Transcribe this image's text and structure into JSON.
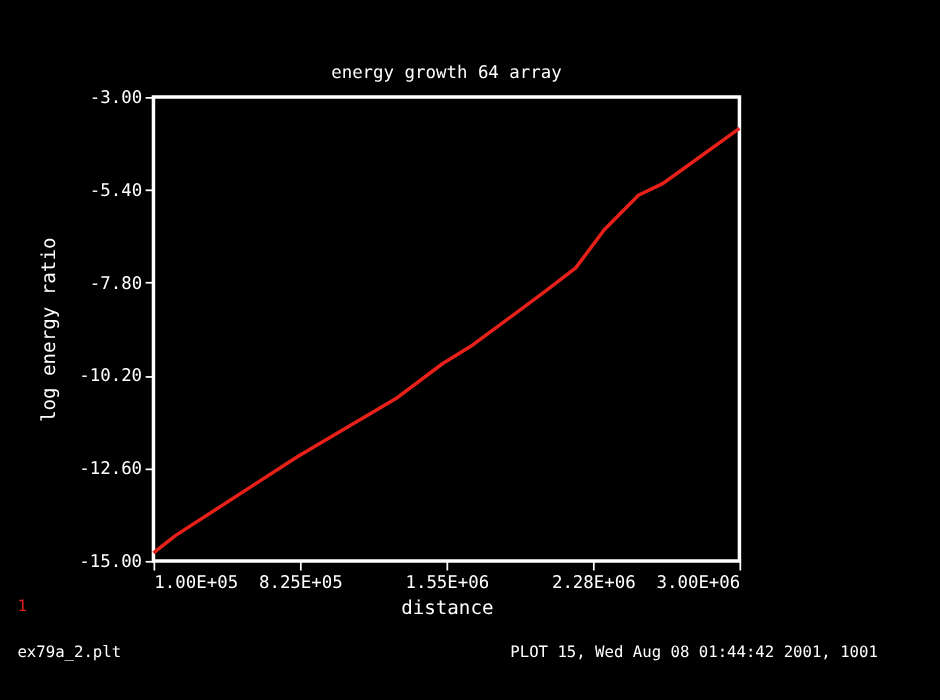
{
  "chart_data": {
    "type": "line",
    "title": "energy growth 64 array",
    "xlabel": "distance",
    "ylabel": "log energy ratio",
    "x": [
      100000,
      210000,
      814000,
      1300000,
      1530000,
      1670000,
      2020000,
      2190000,
      2330000,
      2500000,
      2620000,
      2740000,
      3000000
    ],
    "series": [
      {
        "color": "#e8201a",
        "values": [
          -14.79,
          -14.34,
          -12.3,
          -10.8,
          -9.9,
          -9.45,
          -8.1,
          -7.42,
          -6.44,
          -5.54,
          -5.24,
          -4.79,
          -3.81
        ]
      }
    ],
    "xlim": [
      100000,
      3000000
    ],
    "ylim": [
      -15.0,
      -3.0
    ],
    "xticks": [
      {
        "value": 100000,
        "label": "1.00E+05"
      },
      {
        "value": 825000,
        "label": "8.25E+05"
      },
      {
        "value": 1550000,
        "label": "1.55E+06"
      },
      {
        "value": 2275000,
        "label": "2.28E+06"
      },
      {
        "value": 3000000,
        "label": "3.00E+06"
      }
    ],
    "yticks": [
      {
        "value": -15.0,
        "label": "-15.00"
      },
      {
        "value": -12.6,
        "label": "-12.60"
      },
      {
        "value": -10.2,
        "label": "-10.20"
      },
      {
        "value": -7.8,
        "label": "-7.80"
      },
      {
        "value": -5.4,
        "label": "-5.40"
      },
      {
        "value": -3.0,
        "label": "-3.00"
      }
    ],
    "grid": false,
    "legend": false,
    "marker": "none",
    "line_style": "solid",
    "annotations": [
      "1",
      "ex79a_2.plt",
      "PLOT 15, Wed Aug 08 01:44:42 2001, 1001"
    ]
  }
}
